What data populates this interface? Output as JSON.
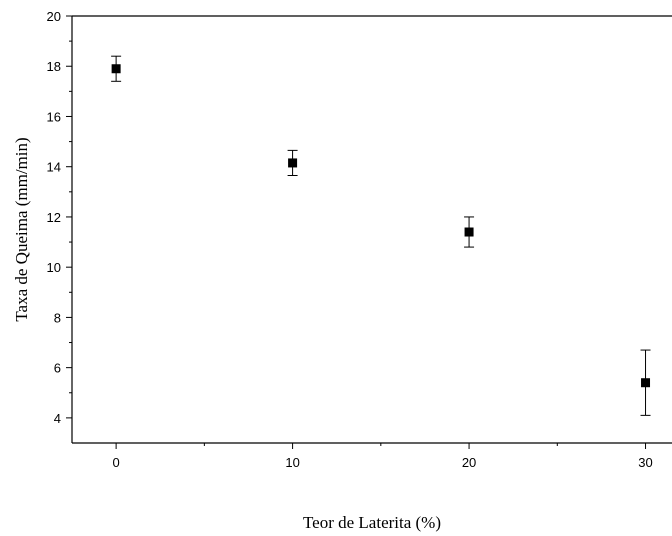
{
  "chart_data": {
    "type": "scatter",
    "title": "",
    "xlabel": "Teor de Laterita (%)",
    "ylabel": "Taxa de Queima (mm/min)",
    "xlim": [
      -2.5,
      31.5
    ],
    "ylim": [
      3,
      20
    ],
    "xticks": [
      0,
      10,
      20,
      30
    ],
    "xtick_labels": [
      "0",
      "10",
      "20",
      "30"
    ],
    "yticks": [
      4,
      6,
      8,
      10,
      12,
      14,
      16,
      18,
      20
    ],
    "ytick_labels": [
      "4",
      "6",
      "8",
      "10",
      "12",
      "14",
      "16",
      "18",
      "20"
    ],
    "grid": false,
    "marker": "square",
    "marker_color": "#000000",
    "series": [
      {
        "x": [
          0,
          10,
          20,
          30
        ],
        "y": [
          17.9,
          14.15,
          11.4,
          5.4
        ],
        "err": [
          0.5,
          0.5,
          0.6,
          1.3
        ]
      }
    ]
  }
}
